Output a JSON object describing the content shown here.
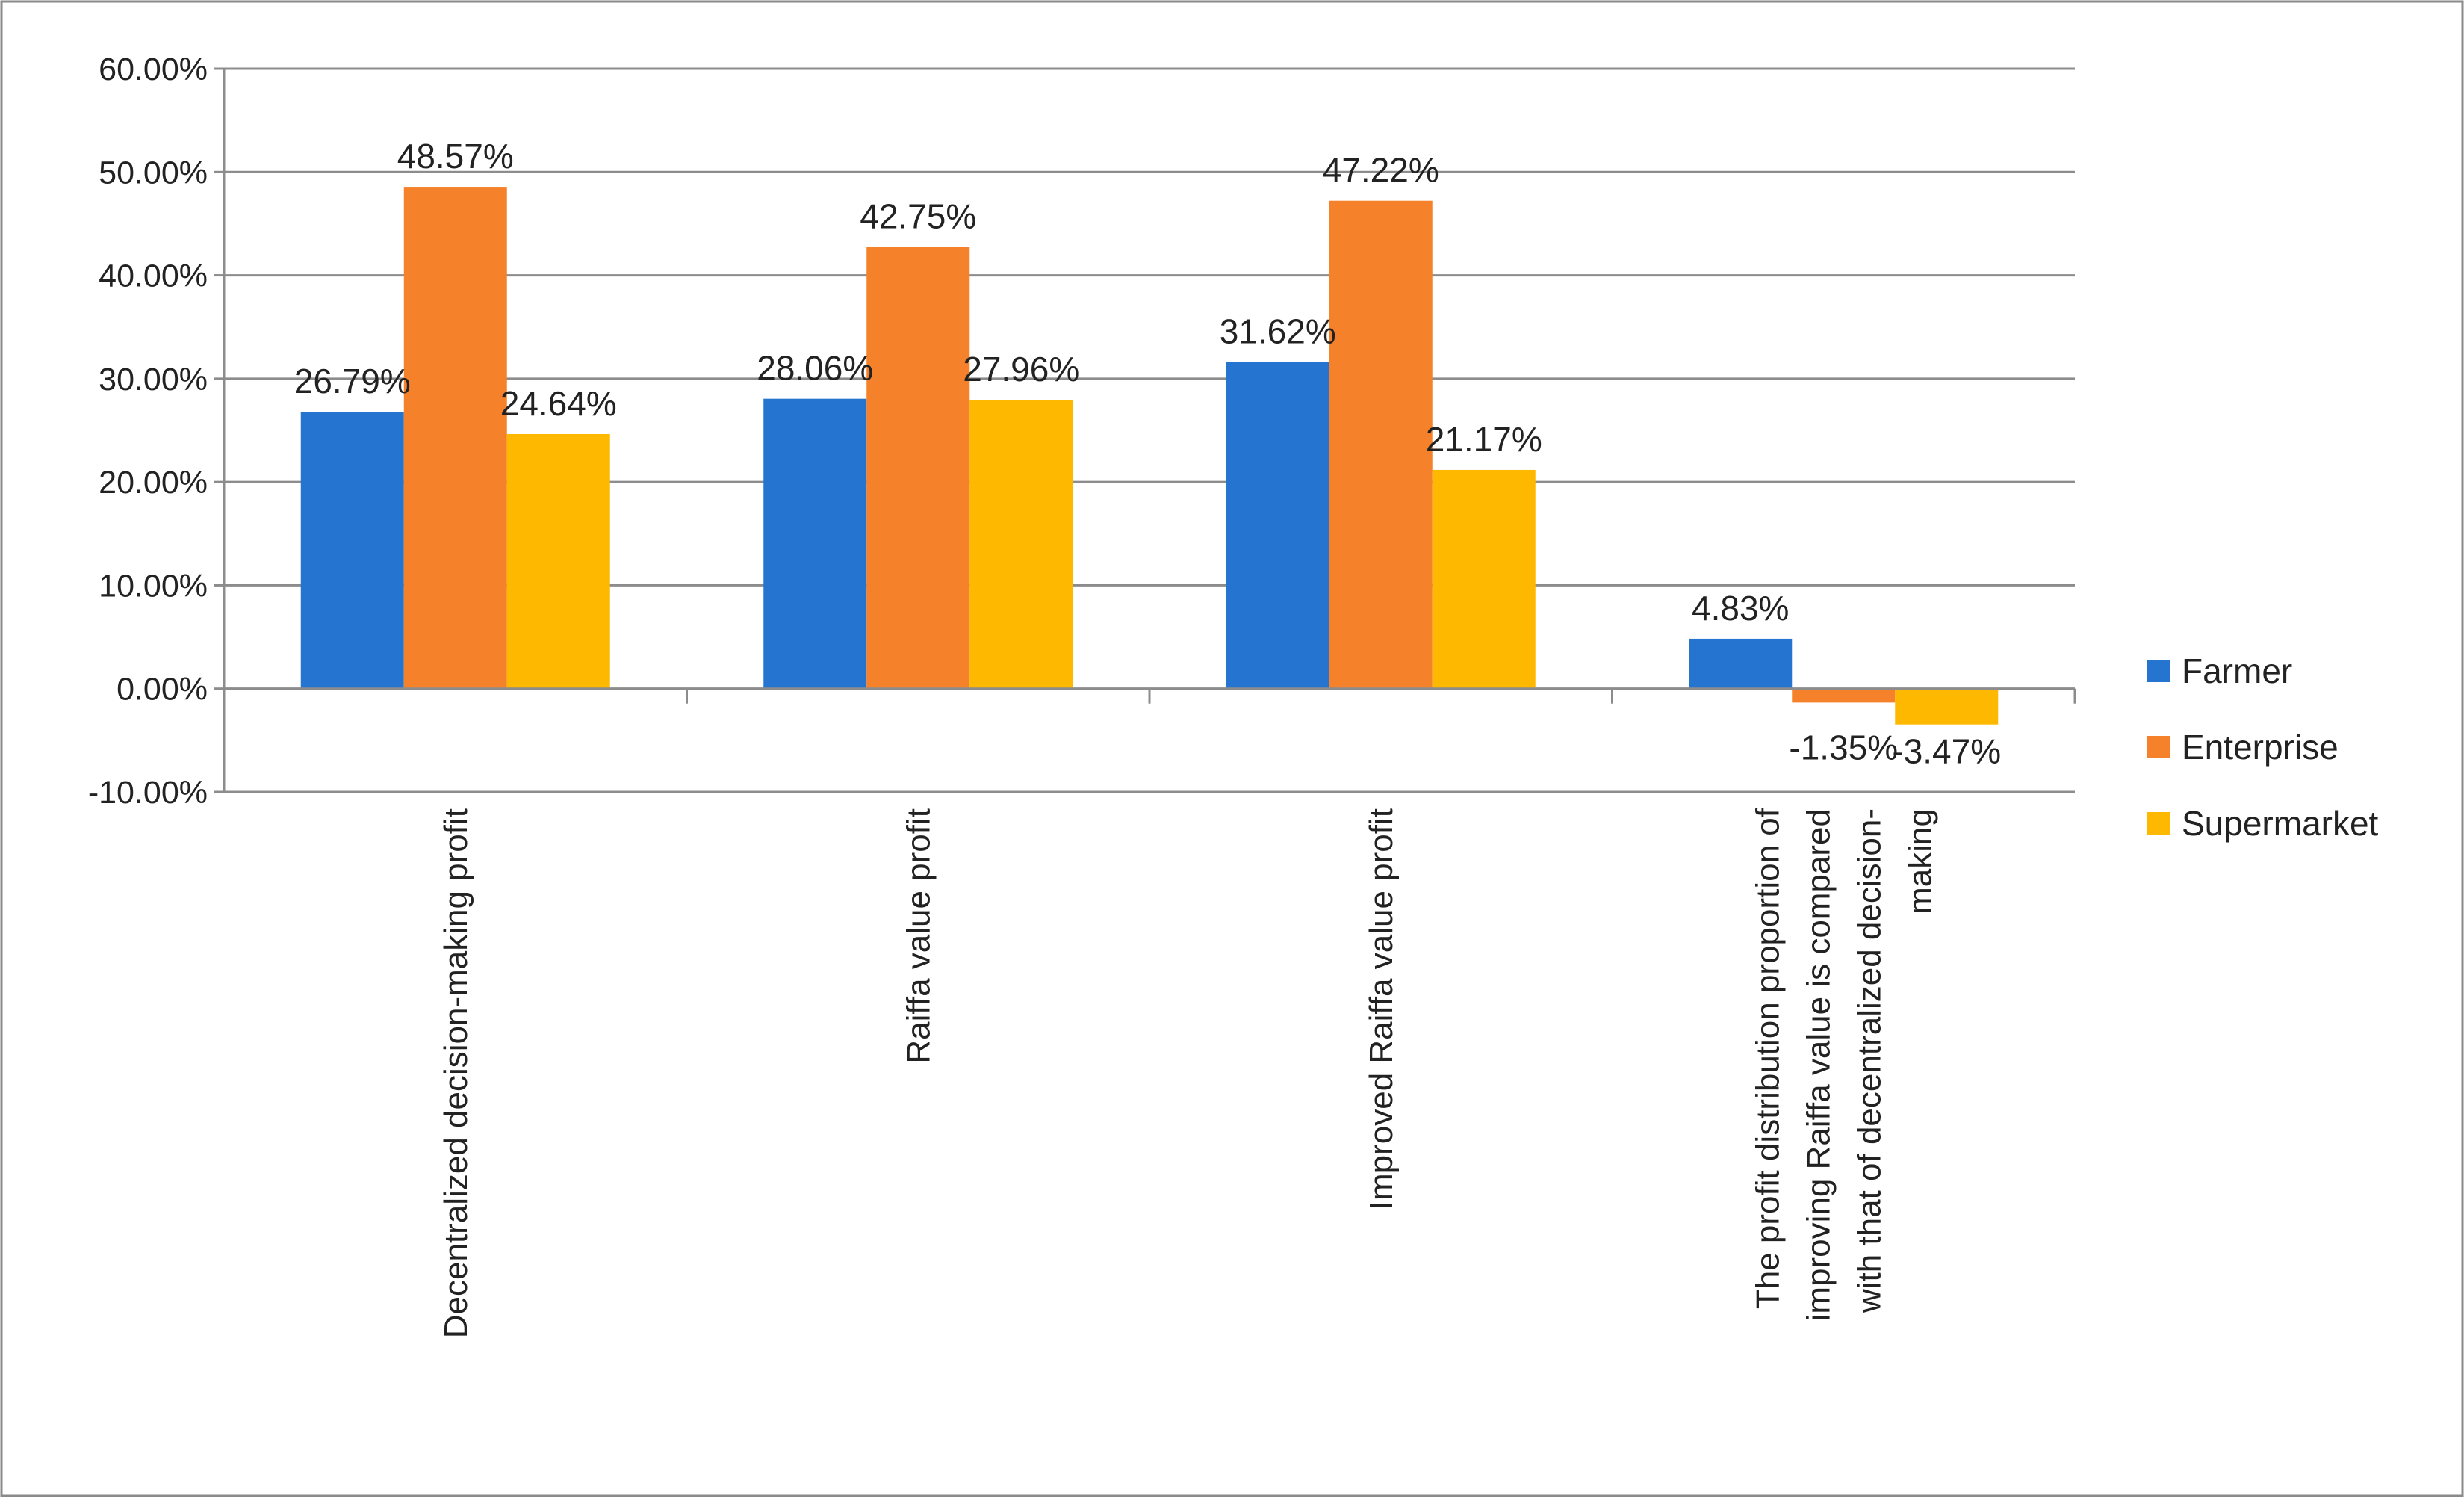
{
  "chart_data": {
    "type": "bar",
    "title": "",
    "xlabel": "",
    "ylabel": "",
    "ylim": [
      -0.1,
      0.6
    ],
    "ytick_step": 0.1,
    "ytick_labels": [
      "-10.00%",
      "0.00%",
      "10.00%",
      "20.00%",
      "30.00%",
      "40.00%",
      "50.00%",
      "60.00%"
    ],
    "grid": true,
    "legend_position": "right",
    "categories": [
      [
        "Decentralized decision-making profit"
      ],
      [
        "Raiffa value profit"
      ],
      [
        "Improved  Raiffa value profit"
      ],
      [
        "The profit distribution proportion of",
        "improving Raiffa value is compared",
        "with that of decentralized decision-",
        "making"
      ]
    ],
    "series": [
      {
        "name": "Farmer",
        "color": "#2575d0",
        "values": [
          0.2679,
          0.2806,
          0.3162,
          0.0483
        ],
        "labels": [
          "26.79%",
          "28.06%",
          "31.62%",
          "4.83%"
        ]
      },
      {
        "name": "Enterprise",
        "color": "#f5822a",
        "values": [
          0.4857,
          0.4275,
          0.4722,
          -0.0135
        ],
        "labels": [
          "48.57%",
          "42.75%",
          "47.22%",
          "-1.35%"
        ]
      },
      {
        "name": "Supermarket",
        "color": "#ffb800",
        "values": [
          0.2464,
          0.2796,
          0.2117,
          -0.0347
        ],
        "labels": [
          "24.64%",
          "27.96%",
          "21.17%",
          "-3.47%"
        ]
      }
    ]
  }
}
